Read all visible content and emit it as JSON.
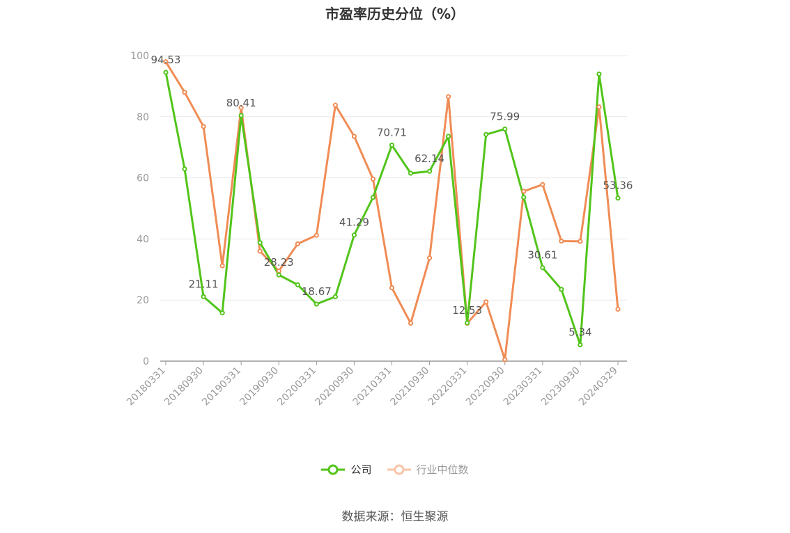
{
  "chart_data": {
    "type": "line",
    "title": "市盈率历史分位（%）",
    "source": "数据来源：恒生聚源",
    "x": [
      "20180331",
      "20180630",
      "20180930",
      "20181231",
      "20190331",
      "20190630",
      "20190930",
      "20191231",
      "20200331",
      "20200630",
      "20200930",
      "20201231",
      "20210331",
      "20210630",
      "20210930",
      "20211231",
      "20220331",
      "20220630",
      "20220930",
      "20221231",
      "20230331",
      "20230630",
      "20230930",
      "20231231",
      "20240329"
    ],
    "x_tick_labels": [
      "20180331",
      "20180930",
      "20190331",
      "20190930",
      "20200331",
      "20200930",
      "20210331",
      "20210930",
      "20220331",
      "20220930",
      "20230331",
      "20230930",
      "20240329"
    ],
    "ylim": [
      0,
      100
    ],
    "y_ticks": [
      0,
      20,
      40,
      60,
      80,
      100
    ],
    "grid": true,
    "legend_position": "bottom",
    "series": [
      {
        "name": "公司",
        "color": "#52c41a",
        "values": [
          94.53,
          62.9,
          21.11,
          15.8,
          80.41,
          38.8,
          28.23,
          25.0,
          18.67,
          21.1,
          41.29,
          53.6,
          70.71,
          61.5,
          62.14,
          73.6,
          12.53,
          74.2,
          75.99,
          53.6,
          30.61,
          23.5,
          5.34,
          94.0,
          53.36
        ],
        "labels": {
          "0": "94.53",
          "2": "21.11",
          "4": "80.41",
          "6": "28.23",
          "8": "18.67",
          "10": "41.29",
          "12": "70.71",
          "14": "62.14",
          "16": "12.53",
          "18": "75.99",
          "20": "30.61",
          "22": "5.34",
          "24": "53.36"
        }
      },
      {
        "name": "行业中位数",
        "color": "#f08c55",
        "values": [
          98.0,
          88.0,
          76.8,
          31.2,
          83.0,
          36.0,
          29.5,
          38.4,
          41.2,
          83.8,
          73.6,
          59.6,
          24.0,
          12.4,
          33.8,
          86.6,
          12.4,
          19.4,
          0.5,
          55.6,
          57.8,
          39.3,
          39.2,
          83.2,
          17.0
        ]
      }
    ]
  }
}
